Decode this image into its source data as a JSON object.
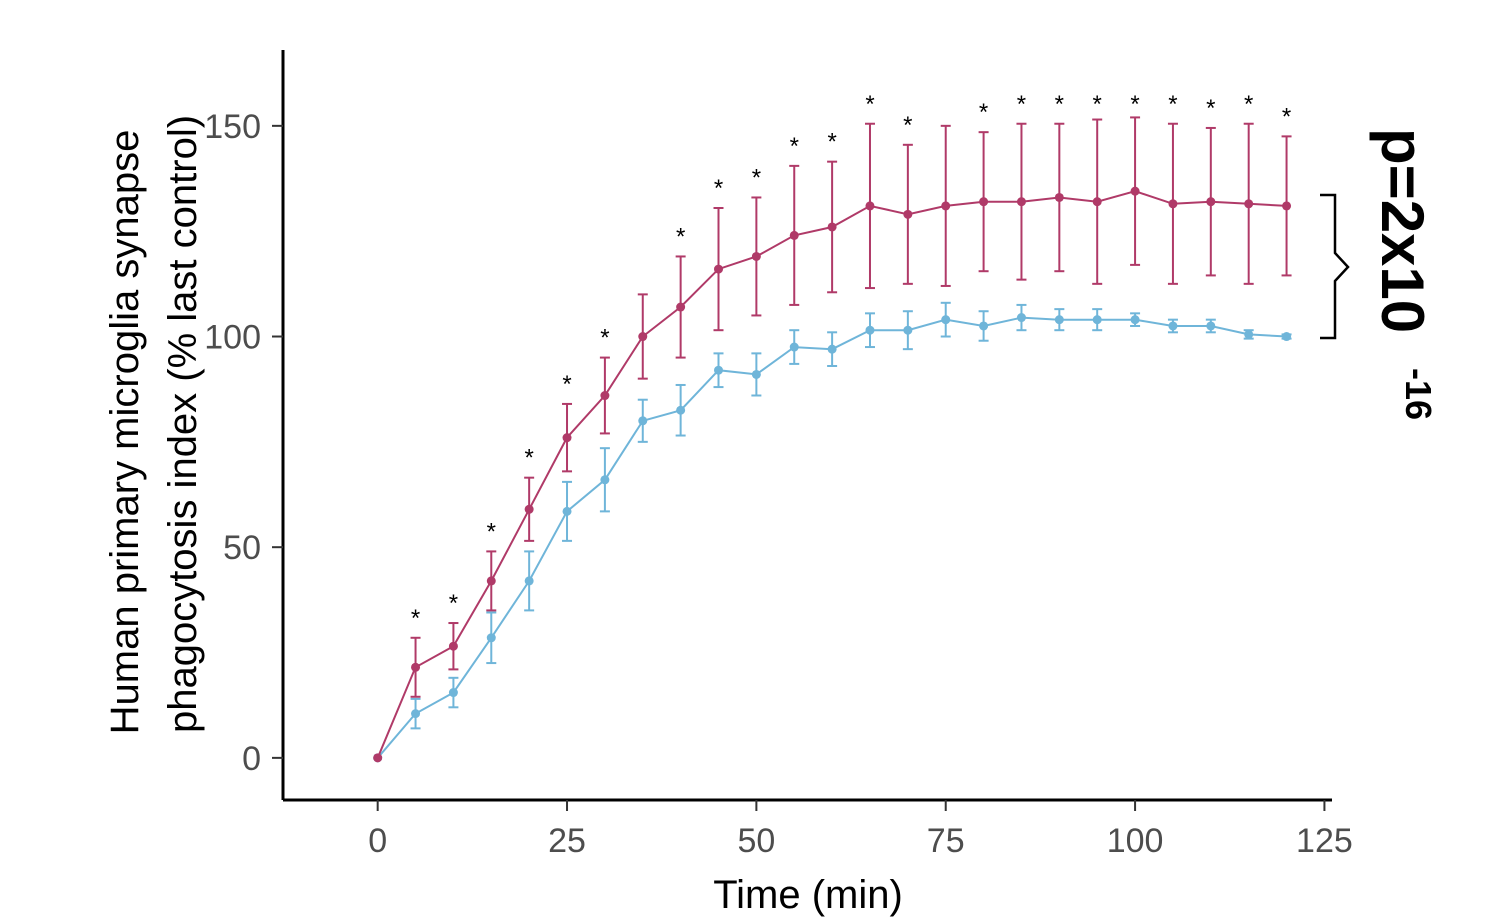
{
  "chart_data": {
    "type": "line",
    "title": "",
    "xlabel": "Time (min)",
    "ylabel_line1": "Human primary microglia synapse",
    "ylabel_line2": "phagocytosis index (% last control)",
    "xlim": [
      -12.5,
      126
    ],
    "ylim": [
      -10,
      168
    ],
    "x_ticks": [
      0,
      25,
      50,
      75,
      100,
      125
    ],
    "y_ticks": [
      0,
      50,
      100,
      150
    ],
    "grid": false,
    "legend": "none",
    "x": [
      0,
      5,
      10,
      15,
      20,
      25,
      30,
      35,
      40,
      45,
      50,
      55,
      60,
      65,
      70,
      75,
      80,
      85,
      90,
      95,
      100,
      105,
      110,
      115,
      120
    ],
    "series": [
      {
        "color": "#b03a68",
        "values": [
          0,
          21.5,
          26.5,
          42,
          59,
          76,
          86,
          100,
          107,
          116,
          119,
          124,
          126,
          131,
          129,
          131,
          132,
          132,
          133,
          132,
          134.5,
          131.5,
          132,
          131.5,
          131
        ],
        "err": [
          0,
          7,
          5.5,
          7,
          7.5,
          8,
          9,
          10,
          12,
          14.5,
          14,
          16.5,
          15.5,
          19.5,
          16.5,
          19,
          16.5,
          18.5,
          17.5,
          19.5,
          17.5,
          19,
          17.5,
          19,
          16.5
        ]
      },
      {
        "color": "#6fb5d9",
        "values": [
          0,
          10.5,
          15.5,
          28.5,
          42,
          58.5,
          66,
          80,
          82.5,
          92,
          91,
          97.5,
          97,
          101.5,
          101.5,
          104,
          102.5,
          104.5,
          104,
          104,
          104,
          102.5,
          102.5,
          100.5,
          100
        ],
        "err": [
          0,
          3.5,
          3.5,
          6,
          7,
          7,
          7.5,
          5,
          6,
          4,
          5,
          4,
          4,
          4,
          4.5,
          4,
          3.5,
          3,
          2.5,
          2.5,
          1.5,
          1.5,
          1.5,
          1,
          0.5
        ]
      }
    ],
    "significance_marker": "*",
    "significant_x": [
      5,
      10,
      15,
      20,
      25,
      30,
      40,
      45,
      50,
      55,
      60,
      65,
      70,
      80,
      85,
      90,
      95,
      100,
      105,
      110,
      115,
      120
    ],
    "annotation": {
      "base": "p=2x10",
      "exponent": "-16"
    }
  }
}
